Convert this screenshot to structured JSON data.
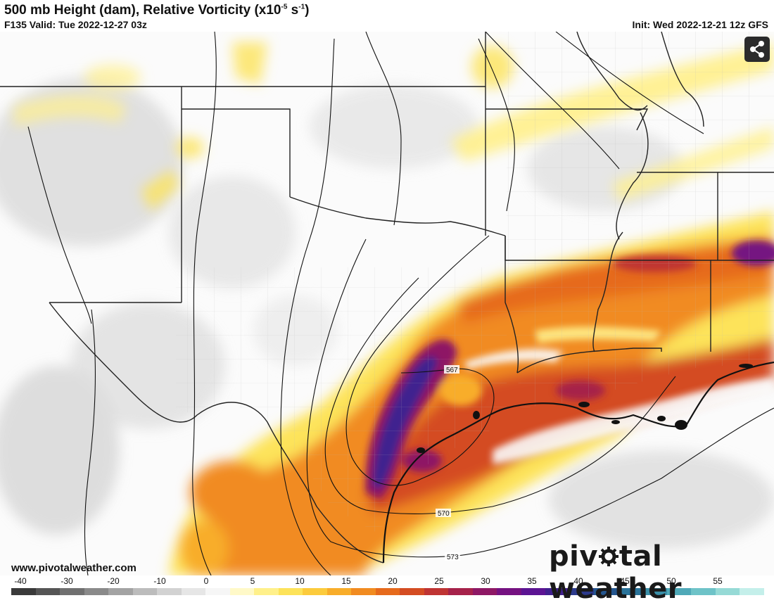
{
  "header": {
    "title_main": "500 mb Height (dam), Relative Vorticity (x10",
    "title_exp": "-5",
    "title_unit": " s",
    "title_exp2": "-1",
    "title_close": ")",
    "valid": "F135 Valid: Tue 2022-12-27 03z",
    "init": "Init: Wed 2022-12-21 12z GFS"
  },
  "map": {
    "contour_labels": [
      {
        "value": "567"
      },
      {
        "value": "570"
      },
      {
        "value": "573"
      }
    ],
    "share_icon": "share-icon"
  },
  "footer": {
    "website": "www.pivotalweather.com",
    "brand_before": "piv",
    "brand_after": "tal weather"
  },
  "legend": {
    "ticks": [
      "-40",
      "-30",
      "-20",
      "-10",
      "0",
      "5",
      "10",
      "15",
      "20",
      "25",
      "30",
      "35",
      "40",
      "45",
      "50",
      "55"
    ],
    "colors": [
      "#3a3a3a",
      "#555555",
      "#707070",
      "#8a8a8a",
      "#a3a3a3",
      "#bcbcbc",
      "#d2d2d2",
      "#e6e6e6",
      "#f6f6f6",
      "#fff9c8",
      "#fff08a",
      "#fde35a",
      "#fccb3c",
      "#f8ad2a",
      "#f18b20",
      "#e66a1c",
      "#d44c22",
      "#bf3433",
      "#a6224a",
      "#8e1865",
      "#751281",
      "#5c1493",
      "#40208f",
      "#2c3a8c",
      "#24568f",
      "#2a7399",
      "#3a8fa8",
      "#4fa9b8",
      "#6ec3c8",
      "#96dad6",
      "#c4efea"
    ]
  }
}
